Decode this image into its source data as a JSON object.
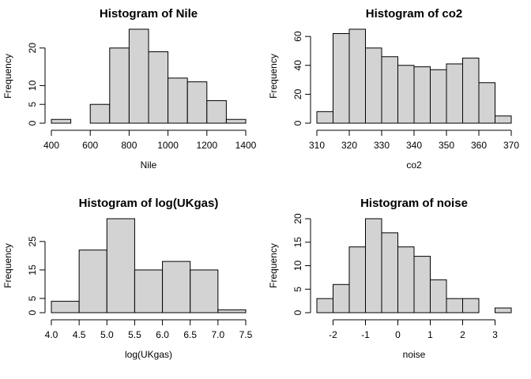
{
  "chart_data": [
    {
      "type": "histogram",
      "title": "Histogram of Nile",
      "x_label": "Nile",
      "y_label": "Frequency",
      "color": "#d3d3d3",
      "bins": [
        400,
        500,
        600,
        700,
        800,
        900,
        1000,
        1100,
        1200,
        1300,
        1400
      ],
      "values": [
        1,
        0,
        5,
        20,
        25,
        19,
        12,
        11,
        6,
        1
      ],
      "xlim": [
        400,
        1400
      ],
      "xticks": [
        400,
        600,
        800,
        1000,
        1200,
        1400
      ],
      "ylim": [
        0,
        25
      ],
      "yticks": [
        0,
        5,
        10,
        20
      ]
    },
    {
      "type": "histogram",
      "title": "Histogram of co2",
      "x_label": "co2",
      "y_label": "Frequency",
      "color": "#d3d3d3",
      "bins": [
        310,
        315,
        320,
        325,
        330,
        335,
        340,
        345,
        350,
        355,
        360,
        365,
        370
      ],
      "values": [
        8,
        62,
        65,
        52,
        46,
        40,
        39,
        37,
        41,
        45,
        28,
        5
      ],
      "xlim": [
        310,
        370
      ],
      "xticks": [
        310,
        320,
        330,
        340,
        350,
        360,
        370
      ],
      "ylim": [
        0,
        65
      ],
      "yticks": [
        0,
        20,
        40,
        60
      ]
    },
    {
      "type": "histogram",
      "title": "Histogram of log(UKgas)",
      "x_label": "log(UKgas)",
      "y_label": "Frequency",
      "color": "#d3d3d3",
      "bins": [
        4.0,
        4.5,
        5.0,
        5.5,
        6.0,
        6.5,
        7.0,
        7.5
      ],
      "values": [
        4,
        22,
        33,
        15,
        18,
        15,
        1
      ],
      "xlim": [
        4.0,
        7.5
      ],
      "xticks": [
        {
          "value": 4,
          "label": "4.0"
        },
        4.5,
        {
          "value": 5,
          "label": "5.0"
        },
        5.5,
        {
          "value": 6,
          "label": "6.0"
        },
        6.5,
        {
          "value": 7,
          "label": "7.0"
        },
        7.5
      ],
      "ylim": [
        0,
        33
      ],
      "yticks": [
        0,
        5,
        15,
        25
      ]
    },
    {
      "type": "histogram",
      "title": "Histogram of noise",
      "x_label": "noise",
      "y_label": "Frequency",
      "color": "#d3d3d3",
      "bins": [
        -2.5,
        -2,
        -1.5,
        -1,
        -0.5,
        0,
        0.5,
        1,
        1.5,
        2,
        2.5,
        3,
        3.5
      ],
      "values": [
        3,
        6,
        14,
        20,
        17,
        14,
        12,
        7,
        3,
        3,
        0,
        1
      ],
      "xlim": [
        -2.5,
        3.5
      ],
      "xticks": [
        -2,
        -1,
        0,
        1,
        2,
        3
      ],
      "ylim": [
        0,
        20
      ],
      "yticks": [
        0,
        5,
        10,
        15,
        20
      ]
    }
  ]
}
